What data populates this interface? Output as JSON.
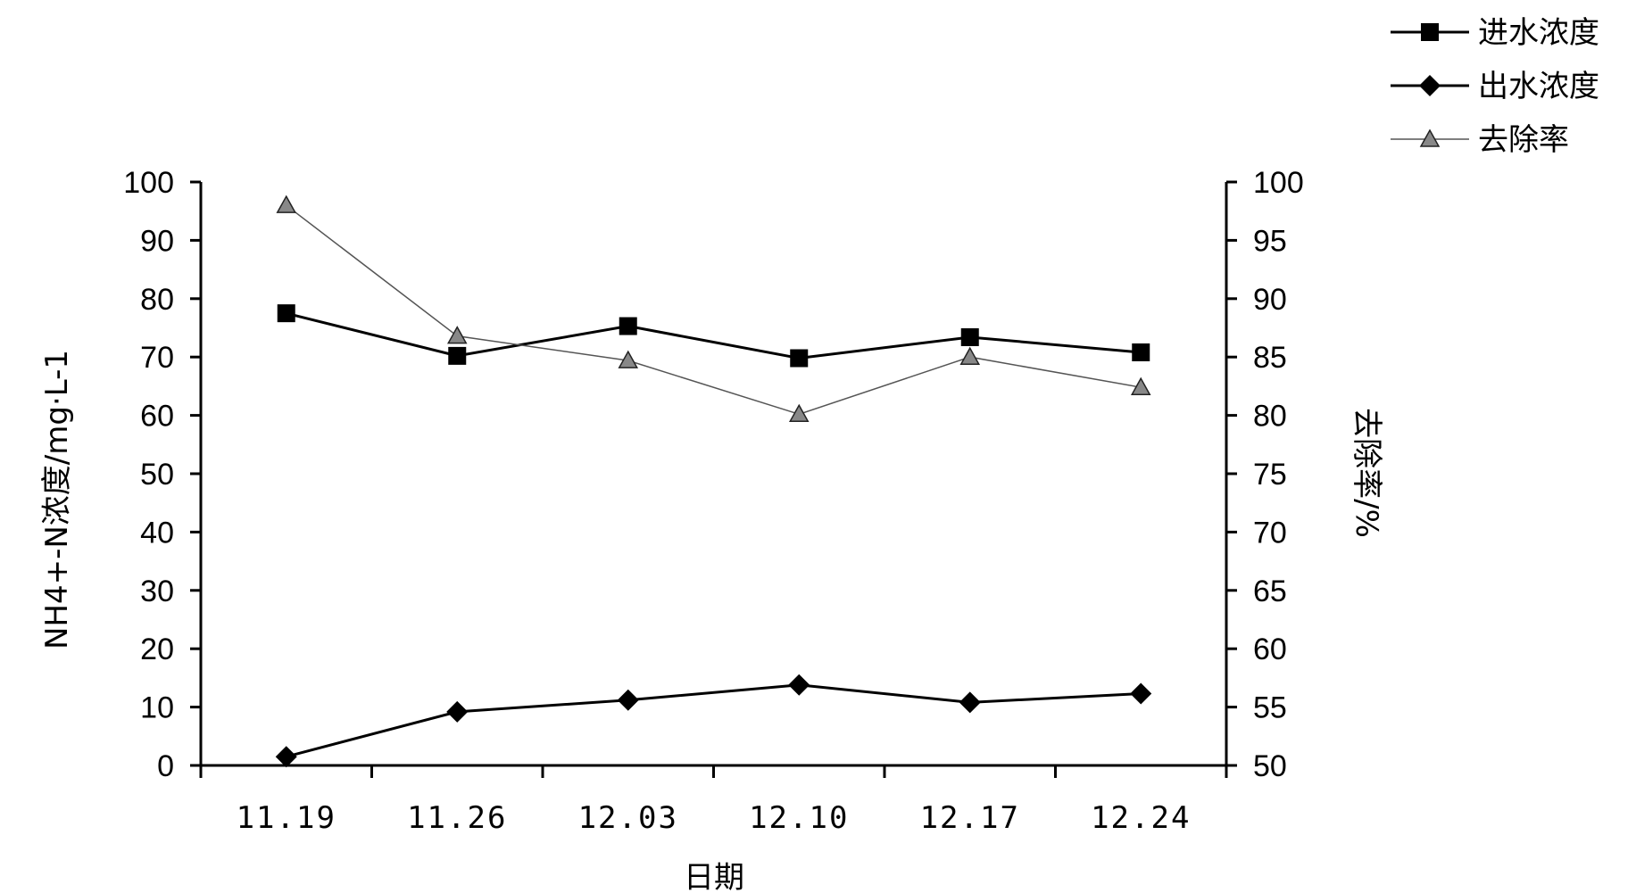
{
  "chart_data": {
    "type": "line",
    "categories": [
      "11.19",
      "11.26",
      "12.03",
      "12.10",
      "12.17",
      "12.24"
    ],
    "xlabel": "日期",
    "ylabel_left": "NH4+-N浓度/mg·L-1",
    "ylabel_right": "去除率/%",
    "ylim_left": [
      0,
      100
    ],
    "ylim_right": [
      50,
      100
    ],
    "yticks_left": [
      "0",
      "10",
      "20",
      "30",
      "40",
      "50",
      "60",
      "70",
      "80",
      "90",
      "100"
    ],
    "yticks_right": [
      "50",
      "55",
      "60",
      "65",
      "70",
      "75",
      "80",
      "85",
      "90",
      "95",
      "100"
    ],
    "grid": false,
    "legend_position": "top-right",
    "series": [
      {
        "name": "进水浓度",
        "axis": "left",
        "marker": "square",
        "line_style": "thick",
        "color": "#000000",
        "values": [
          77.5,
          70.2,
          75.3,
          69.8,
          73.4,
          70.8
        ]
      },
      {
        "name": "出水浓度",
        "axis": "left",
        "marker": "diamond",
        "line_style": "thick",
        "color": "#000000",
        "values": [
          1.5,
          9.2,
          11.2,
          13.8,
          10.8,
          12.3
        ]
      },
      {
        "name": "去除率",
        "axis": "right",
        "marker": "triangle",
        "line_style": "thin",
        "color": "#555555",
        "values": [
          98.0,
          86.8,
          84.7,
          80.1,
          85.0,
          82.4
        ]
      }
    ]
  }
}
